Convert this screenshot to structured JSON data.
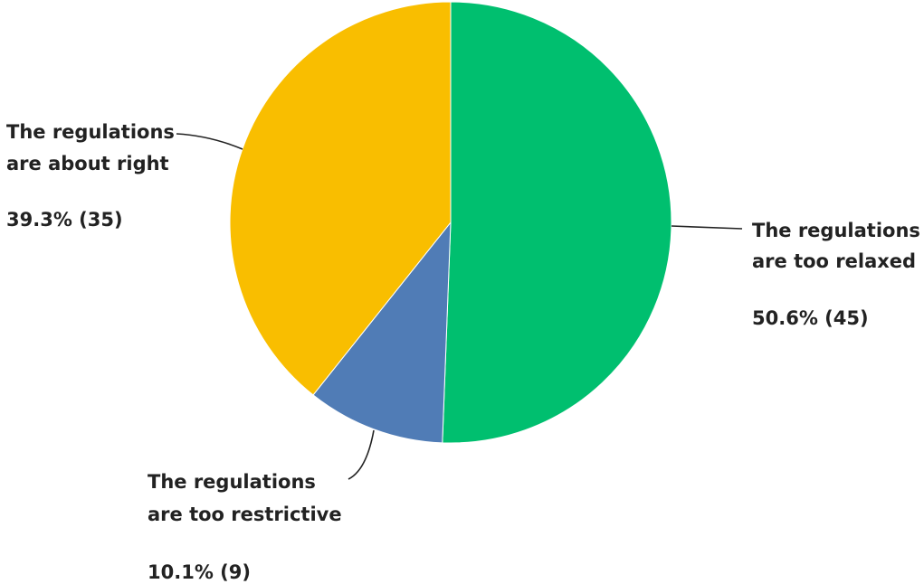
{
  "chart_data": {
    "type": "pie",
    "title": "",
    "slices": [
      {
        "key": "relaxed",
        "label_lines": [
          "The regulations",
          "are too relaxed"
        ],
        "value_text": "50.6% (45)",
        "percent": 50.6,
        "count": 45,
        "color": "#00bf6f"
      },
      {
        "key": "restrictive",
        "label_lines": [
          "The regulations",
          "are too restrictive"
        ],
        "value_text": "10.1% (9)",
        "percent": 10.1,
        "count": 9,
        "color": "#507cb6"
      },
      {
        "key": "right",
        "label_lines": [
          "The regulations",
          "are about right"
        ],
        "value_text": "39.3% (35)",
        "percent": 39.3,
        "count": 35,
        "color": "#f9be00"
      }
    ]
  }
}
